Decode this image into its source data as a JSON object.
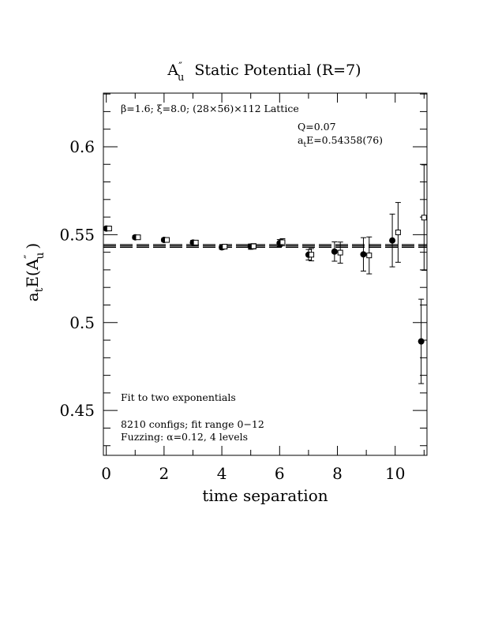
{
  "chart_data": {
    "type": "scatter",
    "title_main": "A",
    "title_prime": "″",
    "title_sub": "u",
    "title_rest": "Static Potential (R=7)",
    "xlabel": "time separation",
    "ylabel_main": "a",
    "ylabel_sub": "t",
    "ylabel_rest": "E(A",
    "ylabel_prime": "″",
    "ylabel_sub2": "u",
    "ylabel_close": ")",
    "xlim": [
      -0.1,
      11.1
    ],
    "ylim": [
      0.4245,
      0.6305
    ],
    "x_ticks": [
      0,
      2,
      4,
      6,
      8,
      10
    ],
    "x_tick_labels": [
      "0",
      "2",
      "4",
      "6",
      "8",
      "10"
    ],
    "y_ticks": [
      0.45,
      0.5,
      0.55,
      0.6
    ],
    "y_tick_labels": [
      "0.45",
      "0.5",
      "0.55",
      "0.6"
    ],
    "annotations": {
      "lattice": "β=1.6; ξ=8.0; (28×56)×112 Lattice",
      "q": "Q=0.07",
      "energy_main": "a",
      "energy_sub": "t",
      "energy_rest": "E=0.54358(76)",
      "fit": "Fit to two exponentials",
      "configs": "8210 configs; fit range 0−12",
      "fuzzing": "Fuzzing: α=0.12, 4 levels"
    },
    "fit": {
      "value": 0.54358,
      "error": 0.00076
    },
    "series": [
      {
        "marker": "filled-circle",
        "points": [
          {
            "x": 0,
            "y": 0.5535,
            "err": 0.0008
          },
          {
            "x": 1,
            "y": 0.5485,
            "err": 0.001
          },
          {
            "x": 2,
            "y": 0.547,
            "err": 0.001
          },
          {
            "x": 3,
            "y": 0.5455,
            "err": 0.0012
          },
          {
            "x": 4,
            "y": 0.5428,
            "err": 0.0012
          },
          {
            "x": 5,
            "y": 0.5432,
            "err": 0.0015
          },
          {
            "x": 6,
            "y": 0.5452,
            "err": 0.002
          },
          {
            "x": 7,
            "y": 0.5386,
            "err": 0.003
          },
          {
            "x": 7.9,
            "y": 0.5404,
            "err": 0.0055
          },
          {
            "x": 8.9,
            "y": 0.5388,
            "err": 0.0095
          },
          {
            "x": 9.9,
            "y": 0.5467,
            "err": 0.015
          },
          {
            "x": 10.9,
            "y": 0.4893,
            "err": 0.024
          }
        ]
      },
      {
        "marker": "open-square",
        "points": [
          {
            "x": 0.1,
            "y": 0.5535,
            "err": 0.0008
          },
          {
            "x": 1.1,
            "y": 0.5485,
            "err": 0.001
          },
          {
            "x": 2.1,
            "y": 0.547,
            "err": 0.001
          },
          {
            "x": 3.1,
            "y": 0.5455,
            "err": 0.0012
          },
          {
            "x": 4.1,
            "y": 0.5432,
            "err": 0.0012
          },
          {
            "x": 5.1,
            "y": 0.5434,
            "err": 0.0015
          },
          {
            "x": 6.1,
            "y": 0.5457,
            "err": 0.002
          },
          {
            "x": 7.1,
            "y": 0.5386,
            "err": 0.0035
          },
          {
            "x": 8.1,
            "y": 0.5398,
            "err": 0.006
          },
          {
            "x": 9.1,
            "y": 0.5382,
            "err": 0.0105
          },
          {
            "x": 10.1,
            "y": 0.5513,
            "err": 0.017
          },
          {
            "x": 11.0,
            "y": 0.5597,
            "err": 0.03
          }
        ]
      }
    ]
  }
}
